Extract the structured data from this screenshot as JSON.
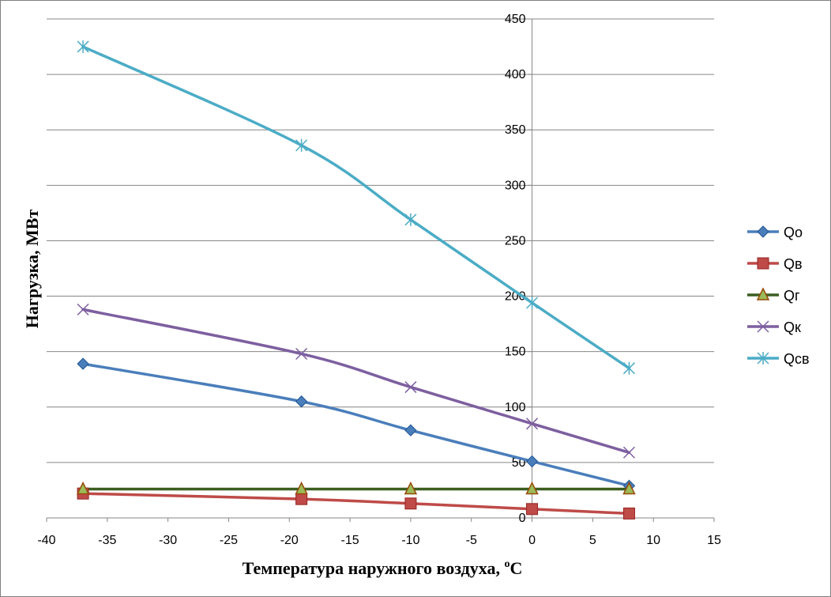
{
  "chart_data": {
    "type": "line",
    "xlabel": "Температура наружного воздуха, ",
    "xlabel_sup": "o",
    "xlabel_unit": "C",
    "ylabel": "Нагрузка, МВт",
    "xlim": [
      -40,
      15
    ],
    "ylim": [
      0,
      450
    ],
    "x_ticks": [
      -40,
      -35,
      -30,
      -25,
      -20,
      -15,
      -10,
      -5,
      0,
      5,
      10,
      15
    ],
    "y_ticks": [
      0,
      50,
      100,
      150,
      200,
      250,
      300,
      350,
      400,
      450
    ],
    "y_axis_at_x": 0,
    "grid": "horizontal",
    "legend_position": "right",
    "x": [
      -37,
      -19,
      -10,
      0,
      8
    ],
    "series": [
      {
        "name": "Qо",
        "values": [
          139,
          105,
          79,
          51,
          29
        ],
        "color": "#4a7ebb",
        "marker": "diamond"
      },
      {
        "name": "Qв",
        "values": [
          22,
          17,
          13,
          8,
          4
        ],
        "color": "#be4b48",
        "marker": "square"
      },
      {
        "name": "Qг",
        "values": [
          26,
          26,
          26,
          26,
          26
        ],
        "color": "#3b5e20",
        "marker": "triangle"
      },
      {
        "name": "Qк",
        "values": [
          188,
          148,
          118,
          85,
          59
        ],
        "color": "#7d5fa0",
        "marker": "x"
      },
      {
        "name": "Qсв",
        "values": [
          425,
          336,
          269,
          194,
          135
        ],
        "color": "#4bacc6",
        "marker": "star"
      }
    ]
  }
}
